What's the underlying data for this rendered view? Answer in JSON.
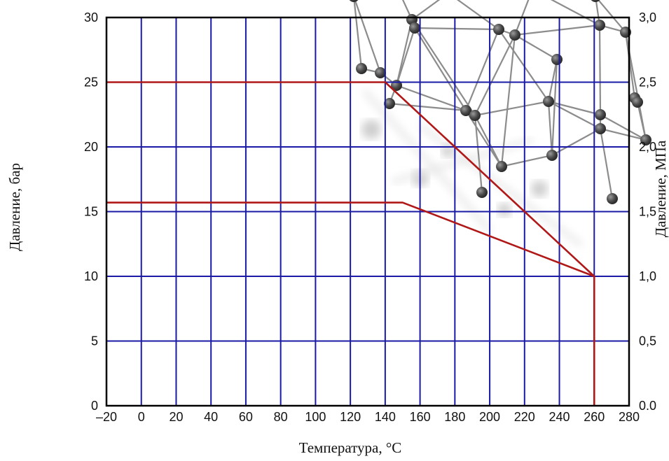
{
  "chart_data": {
    "type": "line",
    "xlabel": "Температура, °C",
    "ylabel_left": "Давление, бар",
    "ylabel_right": "Давление, МПа",
    "xlim": [
      -20,
      280
    ],
    "ylim_left": [
      0,
      30
    ],
    "ylim_right": [
      0,
      3.0
    ],
    "grid": true,
    "x_ticks": [
      "–20",
      "0",
      "20",
      "40",
      "60",
      "80",
      "100",
      "120",
      "140",
      "160",
      "180",
      "200",
      "220",
      "240",
      "260",
      "280"
    ],
    "y_ticks_left": [
      "0",
      "5",
      "10",
      "15",
      "20",
      "25",
      "30"
    ],
    "y_ticks_right": [
      "0.0",
      "0,5",
      "1,0",
      "1,5",
      "2,0",
      "2,5",
      "3,0"
    ],
    "colors": {
      "grid": "#1a1aa6",
      "series": "#b01818",
      "axis": "#000000"
    },
    "series": [
      {
        "x": [
          -20,
          140,
          260,
          260
        ],
        "y": [
          25,
          25,
          10,
          0
        ]
      },
      {
        "x": [
          -20,
          150,
          260
        ],
        "y": [
          15.7,
          15.7,
          10
        ]
      }
    ],
    "background_decoration": "molecule-network"
  }
}
